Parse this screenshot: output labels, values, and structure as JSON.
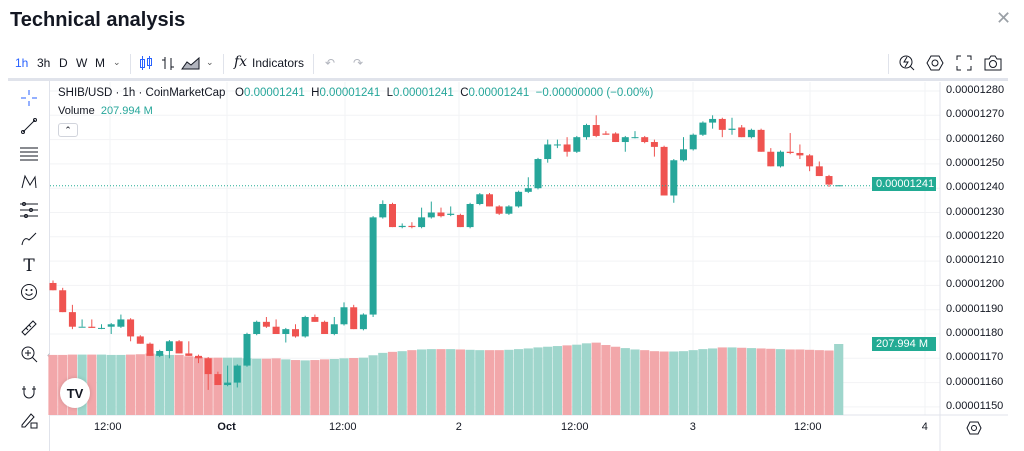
{
  "header": {
    "title": "Technical analysis",
    "close_icon": "close-icon"
  },
  "toolbar": {
    "intervals": [
      "1h",
      "3h",
      "D",
      "W",
      "M"
    ],
    "active_interval": "1h",
    "indicators_label": "Indicators"
  },
  "legend": {
    "symbol": "SHIB/USD · 1h · CoinMarketCap",
    "o_label": "O",
    "o": "0.00001241",
    "h_label": "H",
    "h": "0.00001241",
    "l_label": "L",
    "l": "0.00001241",
    "c_label": "C",
    "c": "0.00001241",
    "change": "−0.00000000 (−0.00%)",
    "volume_label": "Volume",
    "volume": "207.994 M"
  },
  "colors": {
    "up": "#26a69a",
    "down": "#ef5350",
    "up_vol": "#9fd6cc",
    "down_vol": "#f2a7aa",
    "accent": "#2962ff"
  },
  "chart_data": {
    "type": "candlestick",
    "price_scale": 1e-08,
    "price_ticks": [
      "0.00001280",
      "0.00001270",
      "0.00001260",
      "0.00001250",
      "0.00001240",
      "0.00001230",
      "0.00001220",
      "0.00001210",
      "0.00001200",
      "0.00001190",
      "0.00001180",
      "0.00001170",
      "0.00001160",
      "0.00001150"
    ],
    "time_ticks": [
      "12:00",
      "Oct",
      "12:00",
      "2",
      "12:00",
      "3",
      "12:00",
      "4"
    ],
    "last_price": "0.00001241",
    "last_volume": "207.994 M",
    "candles_ohlc": [
      [
        1201,
        1202,
        1198,
        1198
      ],
      [
        1198,
        1199,
        1189,
        1189
      ],
      [
        1189,
        1192,
        1182,
        1183
      ],
      [
        1183,
        1186,
        1183,
        1183
      ],
      [
        1183,
        1186,
        1182.5,
        1182.5
      ],
      [
        1182.5,
        1184,
        1182,
        1182.5
      ],
      [
        1183,
        1184.5,
        1180,
        1184
      ],
      [
        1183,
        1188,
        1182.5,
        1186
      ],
      [
        1186,
        1186.5,
        1177,
        1179
      ],
      [
        1179,
        1179.5,
        1176,
        1176
      ],
      [
        1176,
        1176.5,
        1171,
        1171
      ],
      [
        1171,
        1173.5,
        1170.5,
        1173
      ],
      [
        1173,
        1177.5,
        1170,
        1177
      ],
      [
        1177,
        1177.5,
        1172,
        1172
      ],
      [
        1172,
        1177,
        1171,
        1171
      ],
      [
        1171,
        1171.5,
        1168,
        1170
      ],
      [
        1170,
        1170.5,
        1157,
        1163.5
      ],
      [
        1163.5,
        1164.5,
        1159,
        1159
      ],
      [
        1159,
        1167,
        1158.5,
        1160
      ],
      [
        1160,
        1167.5,
        1158,
        1167
      ],
      [
        1167,
        1180.5,
        1166.5,
        1180
      ],
      [
        1180,
        1185.5,
        1179.5,
        1185
      ],
      [
        1185,
        1187,
        1182.5,
        1183
      ],
      [
        1183,
        1186,
        1180,
        1180
      ],
      [
        1180,
        1182.5,
        1176.5,
        1182
      ],
      [
        1182,
        1184,
        1178.5,
        1179
      ],
      [
        1179,
        1187.5,
        1178.5,
        1187
      ],
      [
        1187,
        1188,
        1185,
        1185
      ],
      [
        1185,
        1185.5,
        1180,
        1180
      ],
      [
        1180,
        1187,
        1179.5,
        1184
      ],
      [
        1184,
        1193,
        1183.5,
        1191
      ],
      [
        1191,
        1192,
        1182,
        1182
      ],
      [
        1182,
        1188.5,
        1181.5,
        1188
      ],
      [
        1188,
        1228.5,
        1187,
        1228
      ],
      [
        1228,
        1235,
        1227.5,
        1233.5
      ],
      [
        1233.5,
        1234,
        1224,
        1224
      ],
      [
        1224,
        1225.5,
        1223.5,
        1224.5
      ],
      [
        1224.5,
        1226,
        1223.5,
        1224
      ],
      [
        1224,
        1232,
        1223.5,
        1228
      ],
      [
        1228,
        1234.5,
        1227.5,
        1230
      ],
      [
        1230,
        1232,
        1228,
        1228.5
      ],
      [
        1229,
        1232.5,
        1228.5,
        1229.5
      ],
      [
        1229,
        1229.5,
        1224,
        1224
      ],
      [
        1224,
        1234,
        1223.5,
        1233.5
      ],
      [
        1233.5,
        1238,
        1233,
        1237.5
      ],
      [
        1237.5,
        1238,
        1232.5,
        1232.5
      ],
      [
        1232.5,
        1233,
        1229,
        1229.5
      ],
      [
        1229.5,
        1233,
        1229,
        1232.5
      ],
      [
        1232.5,
        1239,
        1232,
        1238.5
      ],
      [
        1238.5,
        1244.5,
        1238,
        1240
      ],
      [
        1240,
        1252.5,
        1239.5,
        1252
      ],
      [
        1252,
        1260,
        1250.5,
        1258
      ],
      [
        1258,
        1260,
        1256.5,
        1258
      ],
      [
        1258,
        1261,
        1253,
        1255
      ],
      [
        1255,
        1261.5,
        1254.5,
        1261
      ],
      [
        1261,
        1266.5,
        1260,
        1266
      ],
      [
        1266,
        1270,
        1261,
        1261.5
      ],
      [
        1262.5,
        1263.5,
        1262,
        1262
      ],
      [
        1262.5,
        1263,
        1259,
        1259
      ],
      [
        1259,
        1261.5,
        1255,
        1261
      ],
      [
        1261,
        1263.5,
        1260.5,
        1261
      ],
      [
        1261,
        1261.5,
        1258.5,
        1259
      ],
      [
        1259,
        1260,
        1253,
        1257
      ],
      [
        1257,
        1257.5,
        1237,
        1237
      ],
      [
        1237,
        1252,
        1234,
        1251.5
      ],
      [
        1251.5,
        1261,
        1251,
        1256
      ],
      [
        1256,
        1262.5,
        1255.5,
        1262
      ],
      [
        1262,
        1267.5,
        1261.5,
        1267
      ],
      [
        1267,
        1270,
        1264.5,
        1268.5
      ],
      [
        1268.5,
        1269,
        1261,
        1264
      ],
      [
        1264,
        1269,
        1262,
        1264.5
      ],
      [
        1265,
        1266,
        1261,
        1261
      ],
      [
        1261,
        1264.5,
        1260.5,
        1264
      ],
      [
        1264,
        1264.5,
        1255,
        1255
      ],
      [
        1255,
        1256.5,
        1249,
        1249
      ],
      [
        1249,
        1255.5,
        1248.5,
        1255
      ],
      [
        1255,
        1262.7,
        1254,
        1254.5
      ],
      [
        1254.5,
        1258,
        1252,
        1253.5
      ],
      [
        1253.5,
        1254,
        1247,
        1249
      ],
      [
        1249,
        1251,
        1245,
        1245
      ],
      [
        1245,
        1245.5,
        1240.5,
        1241.5
      ],
      [
        1241,
        1241.2,
        1241,
        1241.2
      ]
    ],
    "volumes_m": [
      176,
      176,
      177,
      177,
      177,
      177,
      176,
      176,
      177,
      178,
      180,
      178,
      176,
      176,
      172,
      170,
      168,
      168,
      168,
      168,
      166,
      165,
      165,
      166,
      163,
      161,
      160,
      161,
      163,
      164,
      166,
      167,
      168,
      175,
      182,
      185,
      187,
      190,
      192,
      193,
      193,
      193,
      192,
      191,
      190,
      190,
      190,
      191,
      193,
      195,
      198,
      200,
      202,
      204,
      206,
      210,
      212,
      205,
      200,
      196,
      192,
      190,
      187,
      186,
      186,
      187,
      190,
      193,
      195,
      198,
      198,
      197,
      196,
      195,
      194,
      193,
      192,
      192,
      191,
      190,
      189,
      208
    ]
  }
}
